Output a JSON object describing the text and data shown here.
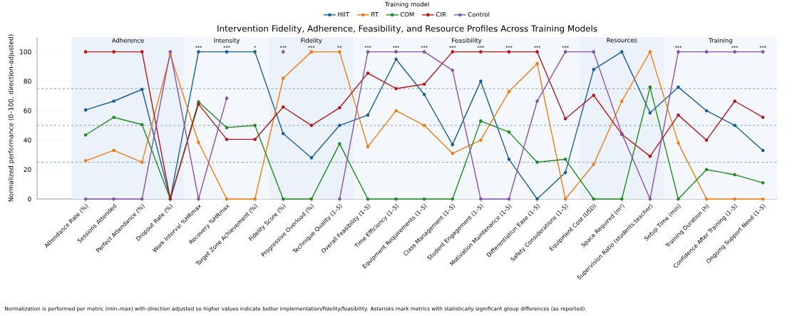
{
  "chart_data": {
    "type": "line",
    "title": "Intervention Fidelity, Adherence, Feasibility, and Resource Profiles Across Training Models",
    "ylabel": "Normalized performance (0–100, direction-adjusted)",
    "legend_title": "Training model",
    "categories": [
      "Attendance Rate (%)",
      "Sessions Attended",
      "Perfect Attendance (%)",
      "Dropout Rate (%)",
      "Work Interval %HRmax",
      "Recovery %HRmax",
      "Target Zone Achievement (%)",
      "Fidelity Score (%)",
      "Progressive Overload (%)",
      "Technique Quality (1–5)",
      "Overall Feasibility (1–5)",
      "Time Efficiency (1–5)",
      "Equipment Requirements (1–5)",
      "Class Management (1–5)",
      "Student Engagement (1–5)",
      "Motivation Maintenance (1–5)",
      "Differentiation Ease (1–5)",
      "Safety Considerations (1–5)",
      "Equipment Cost (USD)",
      "Space Required (m²)",
      "Supervision Ratio (students:teacher)",
      "Setup Time (min)",
      "Training Duration (h)",
      "Confidence After Training (1–5)",
      "Ongoing Support Need (1–5)"
    ],
    "series": [
      {
        "name": "HIIT",
        "color": "#1a5e96",
        "values": [
          60.5,
          66.5,
          74.5,
          0,
          100,
          100,
          100,
          44.5,
          28,
          50,
          57,
          95,
          71,
          37,
          80,
          27,
          0,
          18,
          88,
          100,
          58.5,
          76,
          60,
          50,
          33
        ]
      },
      {
        "name": "RT",
        "color": "#ef7d12",
        "values": [
          26,
          33,
          25,
          98,
          38.5,
          0,
          0,
          82,
          100,
          100,
          35.5,
          60,
          50,
          31,
          40,
          73,
          92,
          0,
          23.5,
          66.5,
          100,
          38,
          0,
          0,
          0
        ]
      },
      {
        "name": "COM",
        "color": "#1f8a1f",
        "values": [
          43.5,
          55.5,
          50.5,
          0,
          66,
          48.5,
          50,
          0,
          0,
          37.5,
          0,
          0,
          0,
          0,
          53,
          45.5,
          25,
          27,
          0,
          0,
          76,
          0,
          20,
          16.5,
          11
        ]
      },
      {
        "name": "CIR",
        "color": "#b5171b",
        "values": [
          100,
          100,
          100,
          0,
          64.5,
          40.5,
          40.5,
          62.5,
          50,
          62,
          85.5,
          75,
          78,
          100,
          100,
          100,
          100,
          54.5,
          70.5,
          44,
          29,
          57,
          40,
          66.5,
          55.5
        ]
      },
      {
        "name": "Control",
        "color": "#8553a8",
        "values": [
          0,
          0,
          0,
          100,
          0,
          68.5,
          null,
          100,
          null,
          0,
          100,
          100,
          100,
          87.5,
          0,
          0,
          66.5,
          100,
          100,
          44.5,
          0,
          100,
          100,
          100,
          100
        ]
      }
    ],
    "ylim": [
      0,
      110
    ],
    "yticks": [
      0,
      20,
      40,
      60,
      80,
      100
    ],
    "grid": true,
    "legend": "top",
    "marker": "circle",
    "line_style": "solid",
    "ref_lines": [
      {
        "axis": "y",
        "value": 25,
        "color": "#5b8db8",
        "line_style": "dashed"
      },
      {
        "axis": "y",
        "value": 50,
        "color": "#5b8db8",
        "line_style": "dashed"
      },
      {
        "axis": "y",
        "value": 75,
        "color": "#5b8db8",
        "line_style": "dashed"
      }
    ],
    "bands": [
      {
        "axis": "x",
        "from": "Attendance Rate (%)",
        "to": "Dropout Rate (%)",
        "label": "Adherence",
        "color": "#ebf2f9"
      },
      {
        "axis": "x",
        "from": "Work Interval %HRmax",
        "to": "Target Zone Achievement (%)",
        "label": "Intensity",
        "color": "#f4f8fc"
      },
      {
        "axis": "x",
        "from": "Fidelity Score (%)",
        "to": "Technique Quality (1–5)",
        "label": "Fidelity",
        "color": "#ebf2f9"
      },
      {
        "axis": "x",
        "from": "Overall Feasibility (1–5)",
        "to": "Safety Considerations (1–5)",
        "label": "Feasibility",
        "color": "#f4f8fc"
      },
      {
        "axis": "x",
        "from": "Equipment Cost (USD)",
        "to": "Supervision Ratio (students:teacher)",
        "label": "Resources",
        "color": "#ebf2f9"
      },
      {
        "axis": "x",
        "from": "Setup Time (min)",
        "to": "Ongoing Support Need (1–5)",
        "label": "Training",
        "color": "#f4f8fc"
      }
    ],
    "annotations": [
      {
        "text": "***",
        "x": "Work Interval %HRmax",
        "y": 100
      },
      {
        "text": "***",
        "x": "Recovery %HRmax",
        "y": 100
      },
      {
        "text": "*",
        "x": "Target Zone Achievement (%)",
        "y": 100
      },
      {
        "text": "***",
        "x": "Fidelity Score (%)",
        "y": 100
      },
      {
        "text": "***",
        "x": "Progressive Overload (%)",
        "y": 100
      },
      {
        "text": "**",
        "x": "Technique Quality (1–5)",
        "y": 100
      },
      {
        "text": "***",
        "x": "Overall Feasibility (1–5)",
        "y": 100
      },
      {
        "text": "***",
        "x": "Time Efficiency (1–5)",
        "y": 100
      },
      {
        "text": "***",
        "x": "Equipment Requirements (1–5)",
        "y": 100
      },
      {
        "text": "***",
        "x": "Class Management (1–5)",
        "y": 100
      },
      {
        "text": "***",
        "x": "Student Engagement (1–5)",
        "y": 100
      },
      {
        "text": "***",
        "x": "Motivation Maintenance (1–5)",
        "y": 100
      },
      {
        "text": "***",
        "x": "Differentiation Ease (1–5)",
        "y": 100
      },
      {
        "text": "***",
        "x": "Safety Considerations (1–5)",
        "y": 100
      },
      {
        "text": "***",
        "x": "Setup Time (min)",
        "y": 100
      },
      {
        "text": "***",
        "x": "Confidence After Training (1–5)",
        "y": 100
      },
      {
        "text": "***",
        "x": "Ongoing Support Need (1–5)",
        "y": 100
      },
      "Normalization is performed per metric (min–max) with direction adjusted so higher values indicate better implementation/fidelity/feasibility. Asterisks mark metrics with statistically significant group differences (as reported)."
    ]
  }
}
